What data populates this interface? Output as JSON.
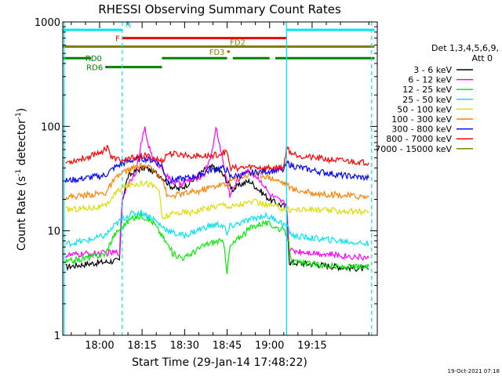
{
  "chart_data": {
    "type": "line",
    "title": "RHESSI Observing Summary Count Rates",
    "xlabel": "Start Time (29-Jan-14 17:48:22)",
    "ylabel_main": "Count Rate (s",
    "ylabel_sup": "-1",
    "ylabel_tail": " detector",
    "ylabel_sup2": "-1",
    "ylabel_close": ")",
    "yscale": "log",
    "ylim": [
      1,
      1000
    ],
    "xlim_minutes": [
      -13,
      98
    ],
    "x_ticks": [
      {
        "m": 0,
        "label": "18:00"
      },
      {
        "m": 15,
        "label": "18:15"
      },
      {
        "m": 30,
        "label": "18:30"
      },
      {
        "m": 45,
        "label": "18:45"
      },
      {
        "m": 60,
        "label": "19:00"
      },
      {
        "m": 75,
        "label": "19:15"
      }
    ],
    "y_ticks": [
      {
        "v": 1,
        "label": "1"
      },
      {
        "v": 10,
        "label": "10"
      },
      {
        "v": 100,
        "label": "100"
      },
      {
        "v": 1000,
        "label": "1000"
      }
    ],
    "legend_header": [
      "Det 1,3,4,5,6,9,",
      "Att 0"
    ],
    "legend_position": "right",
    "footer_date": "19-Oct-2021 07:18",
    "intervals": [
      {
        "label": "N",
        "color": "#00e5ee",
        "y": 840,
        "segments": [
          [
            -13,
            8
          ],
          [
            66,
            97
          ]
        ]
      },
      {
        "label": "F",
        "color": "#ee0000",
        "y": 700,
        "segments": [
          [
            8,
            66
          ]
        ]
      },
      {
        "label": "FD2",
        "color": "#808000",
        "y": 580,
        "segments": [
          [
            -13,
            97
          ]
        ]
      },
      {
        "label": "FD3",
        "color": "#808000",
        "y": 520,
        "segments": [
          [
            45,
            46
          ]
        ]
      },
      {
        "label": "RD0",
        "color": "#008000",
        "y": 450,
        "segments": [
          [
            -13,
            -3
          ],
          [
            22,
            45
          ],
          [
            47,
            60
          ],
          [
            62,
            97
          ]
        ]
      },
      {
        "label": "RD6",
        "color": "#008000",
        "y": 370,
        "segments": [
          [
            2,
            22
          ]
        ]
      }
    ],
    "vlines": [
      {
        "m": -12.5,
        "style": "solid"
      },
      {
        "m": 8,
        "style": "dashed"
      },
      {
        "m": 66,
        "style": "solid"
      },
      {
        "m": 96,
        "style": "dashed"
      }
    ],
    "series": [
      {
        "name": "3 - 6 keV",
        "color": "#000000",
        "points": [
          [
            -12,
            4.5
          ],
          [
            -5,
            4.8
          ],
          [
            7,
            5.2
          ],
          [
            8,
            20
          ],
          [
            10,
            33
          ],
          [
            13,
            38
          ],
          [
            16,
            40
          ],
          [
            19,
            37
          ],
          [
            22,
            33
          ],
          [
            25,
            27
          ],
          [
            28,
            25
          ],
          [
            31,
            28
          ],
          [
            34,
            32
          ],
          [
            37,
            38
          ],
          [
            40,
            41
          ],
          [
            43,
            36
          ],
          [
            45,
            30
          ],
          [
            47,
            25
          ],
          [
            50,
            28
          ],
          [
            53,
            30
          ],
          [
            56,
            25
          ],
          [
            60,
            20
          ],
          [
            63,
            18
          ],
          [
            66,
            17
          ],
          [
            67,
            5
          ],
          [
            75,
            4.8
          ],
          [
            85,
            4.5
          ],
          [
            95,
            4.3
          ]
        ]
      },
      {
        "name": "6 - 12 keV",
        "color": "#ff00ff",
        "points": [
          [
            -12,
            5.8
          ],
          [
            -5,
            6
          ],
          [
            7,
            6.2
          ],
          [
            8,
            20
          ],
          [
            10,
            28
          ],
          [
            13,
            38
          ],
          [
            15,
            75
          ],
          [
            16,
            95
          ],
          [
            17,
            70
          ],
          [
            19,
            48
          ],
          [
            22,
            40
          ],
          [
            25,
            30
          ],
          [
            28,
            28
          ],
          [
            31,
            30
          ],
          [
            34,
            32
          ],
          [
            37,
            35
          ],
          [
            40,
            60
          ],
          [
            41,
            100
          ],
          [
            42,
            75
          ],
          [
            44,
            40
          ],
          [
            46,
            22
          ],
          [
            48,
            28
          ],
          [
            51,
            38
          ],
          [
            54,
            35
          ],
          [
            57,
            30
          ],
          [
            60,
            22
          ],
          [
            64,
            19
          ],
          [
            66,
            18
          ],
          [
            67,
            6.5
          ],
          [
            75,
            6.2
          ],
          [
            85,
            5.8
          ],
          [
            95,
            5.5
          ]
        ]
      },
      {
        "name": "12 - 25 keV",
        "color": "#00ee00",
        "points": [
          [
            -12,
            5
          ],
          [
            -5,
            5.5
          ],
          [
            2,
            6
          ],
          [
            5,
            9
          ],
          [
            8,
            11
          ],
          [
            11,
            13
          ],
          [
            15,
            14
          ],
          [
            19,
            12
          ],
          [
            22,
            9
          ],
          [
            26,
            6
          ],
          [
            30,
            5.5
          ],
          [
            34,
            6.5
          ],
          [
            38,
            7.5
          ],
          [
            42,
            8
          ],
          [
            44,
            7.5
          ],
          [
            45,
            4
          ],
          [
            46,
            7
          ],
          [
            50,
            9
          ],
          [
            54,
            11
          ],
          [
            58,
            12
          ],
          [
            62,
            11
          ],
          [
            66,
            9.5
          ],
          [
            68,
            5
          ],
          [
            75,
            4.8
          ],
          [
            85,
            4.5
          ],
          [
            95,
            4.5
          ]
        ]
      },
      {
        "name": "25 - 50 keV",
        "color": "#00e5ee",
        "points": [
          [
            -12,
            7.5
          ],
          [
            -5,
            8
          ],
          [
            2,
            9
          ],
          [
            5,
            11
          ],
          [
            8,
            13
          ],
          [
            11,
            14.5
          ],
          [
            15,
            15
          ],
          [
            19,
            13
          ],
          [
            22,
            11
          ],
          [
            26,
            9.5
          ],
          [
            30,
            9
          ],
          [
            34,
            10
          ],
          [
            38,
            11
          ],
          [
            42,
            11.5
          ],
          [
            44,
            11
          ],
          [
            45,
            9
          ],
          [
            46,
            11
          ],
          [
            50,
            12
          ],
          [
            54,
            13
          ],
          [
            58,
            14
          ],
          [
            62,
            13
          ],
          [
            66,
            11
          ],
          [
            68,
            9
          ],
          [
            75,
            8.5
          ],
          [
            85,
            8
          ],
          [
            95,
            7.5
          ]
        ]
      },
      {
        "name": "50 - 100 keV",
        "color": "#dddd00",
        "points": [
          [
            -12,
            16
          ],
          [
            -5,
            16.5
          ],
          [
            2,
            17
          ],
          [
            5,
            22
          ],
          [
            8,
            26
          ],
          [
            12,
            28
          ],
          [
            16,
            29
          ],
          [
            19,
            27
          ],
          [
            21,
            25
          ],
          [
            22,
            13
          ],
          [
            24,
            14
          ],
          [
            28,
            15
          ],
          [
            32,
            15
          ],
          [
            36,
            16
          ],
          [
            40,
            17
          ],
          [
            44,
            18
          ],
          [
            46,
            17
          ],
          [
            50,
            18
          ],
          [
            54,
            19
          ],
          [
            58,
            18
          ],
          [
            62,
            17
          ],
          [
            66,
            16
          ],
          [
            68,
            16
          ],
          [
            75,
            16
          ],
          [
            85,
            15.5
          ],
          [
            95,
            15
          ]
        ]
      },
      {
        "name": "100 - 300 keV",
        "color": "#ff8000",
        "points": [
          [
            -12,
            21
          ],
          [
            -5,
            22
          ],
          [
            2,
            23
          ],
          [
            5,
            30
          ],
          [
            8,
            36
          ],
          [
            12,
            40
          ],
          [
            16,
            42
          ],
          [
            19,
            38
          ],
          [
            22,
            33
          ],
          [
            24,
            21
          ],
          [
            27,
            22
          ],
          [
            31,
            23
          ],
          [
            35,
            24
          ],
          [
            39,
            26
          ],
          [
            43,
            28
          ],
          [
            45,
            27
          ],
          [
            46,
            30
          ],
          [
            50,
            33
          ],
          [
            54,
            35
          ],
          [
            58,
            34
          ],
          [
            62,
            31
          ],
          [
            66,
            28
          ],
          [
            68,
            25
          ],
          [
            75,
            23
          ],
          [
            85,
            22
          ],
          [
            95,
            21
          ]
        ]
      },
      {
        "name": "300 - 800 keV",
        "color": "#0000ff",
        "points": [
          [
            -12,
            30
          ],
          [
            -5,
            32
          ],
          [
            2,
            34
          ],
          [
            5,
            40
          ],
          [
            8,
            44
          ],
          [
            12,
            48
          ],
          [
            16,
            49
          ],
          [
            19,
            47
          ],
          [
            22,
            42
          ],
          [
            24,
            30
          ],
          [
            27,
            31
          ],
          [
            31,
            32
          ],
          [
            35,
            34
          ],
          [
            39,
            38
          ],
          [
            43,
            40
          ],
          [
            45,
            38
          ],
          [
            46,
            33
          ],
          [
            50,
            34
          ],
          [
            54,
            36
          ],
          [
            58,
            37
          ],
          [
            62,
            38
          ],
          [
            65,
            38
          ],
          [
            66,
            45
          ],
          [
            68,
            42
          ],
          [
            75,
            38
          ],
          [
            85,
            34
          ],
          [
            95,
            32
          ]
        ]
      },
      {
        "name": "800 - 7000 keV",
        "color": "#ff0000",
        "points": [
          [
            -12,
            45
          ],
          [
            -5,
            50
          ],
          [
            2,
            60
          ],
          [
            3,
            66
          ],
          [
            4,
            50
          ],
          [
            8,
            47
          ],
          [
            12,
            50
          ],
          [
            16,
            52
          ],
          [
            19,
            50
          ],
          [
            22,
            46
          ],
          [
            24,
            55
          ],
          [
            27,
            54
          ],
          [
            31,
            53
          ],
          [
            35,
            52
          ],
          [
            39,
            52
          ],
          [
            43,
            55
          ],
          [
            45,
            58
          ],
          [
            46,
            40
          ],
          [
            50,
            40
          ],
          [
            54,
            41
          ],
          [
            58,
            40
          ],
          [
            62,
            40
          ],
          [
            65,
            41
          ],
          [
            66,
            63
          ],
          [
            68,
            55
          ],
          [
            75,
            50
          ],
          [
            85,
            47
          ],
          [
            95,
            45
          ]
        ]
      },
      {
        "name": "7000 - 15000 keV",
        "color": "#808000",
        "points": []
      }
    ]
  }
}
